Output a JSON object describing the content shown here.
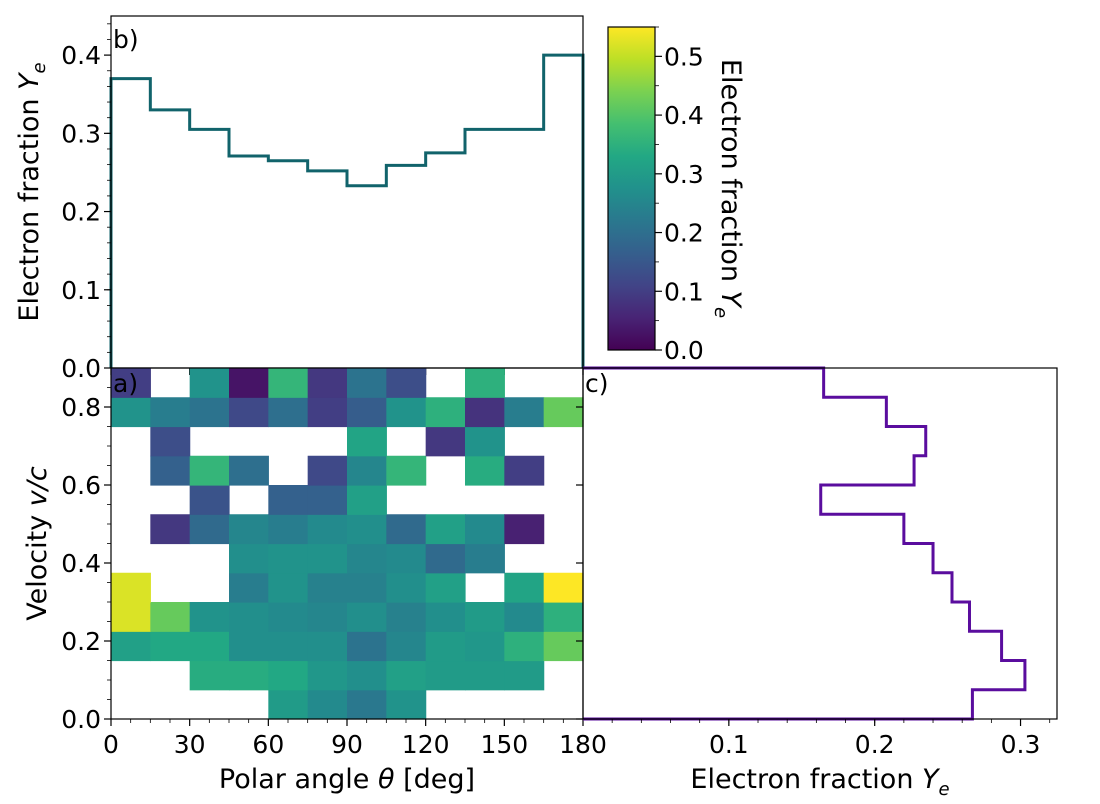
{
  "chart_data": [
    {
      "id": "b",
      "panel_label": "b)",
      "type": "line",
      "step": true,
      "title": "",
      "xlabel": "",
      "ylabel": "Electron fraction $Y_e$",
      "ylabel_text": "Electron fraction ",
      "ylabel_var": "Y",
      "ylabel_sub": "e",
      "xlim": [
        0,
        180
      ],
      "ylim": [
        0,
        0.45
      ],
      "yticks": [
        0.0,
        0.1,
        0.2,
        0.3,
        0.4
      ],
      "ytick_labels": [
        "0.0",
        "0.1",
        "0.2",
        "0.3",
        "0.4"
      ],
      "color": "#11636b",
      "bin_edges": [
        0,
        15,
        30,
        45,
        60,
        75,
        90,
        105,
        120,
        135,
        150,
        165,
        180
      ],
      "values": [
        0.37,
        0.33,
        0.305,
        0.271,
        0.265,
        0.252,
        0.233,
        0.259,
        0.275,
        0.305,
        0.305,
        0.4
      ]
    },
    {
      "id": "a",
      "panel_label": "a)",
      "type": "heatmap",
      "title": "",
      "xlabel": "Polar angle θ [deg]",
      "xlabel_text": "Polar angle ",
      "xlabel_var": "θ",
      "xlabel_unit": " [deg]",
      "ylabel": "Velocity v/c",
      "ylabel_text": "Velocity ",
      "ylabel_var": "v/c",
      "xlim": [
        0,
        180
      ],
      "ylim": [
        0,
        0.9
      ],
      "xticks": [
        0,
        30,
        60,
        90,
        120,
        150,
        180
      ],
      "xtick_labels": [
        "0",
        "30",
        "60",
        "90",
        "120",
        "150",
        "180"
      ],
      "yticks": [
        0.0,
        0.2,
        0.4,
        0.6,
        0.8
      ],
      "ytick_labels": [
        "0.0",
        "0.2",
        "0.4",
        "0.6",
        "0.8"
      ],
      "colormap": "viridis",
      "vmin": 0.0,
      "vmax": 0.55,
      "x_edges": [
        0,
        15,
        30,
        45,
        60,
        75,
        90,
        105,
        120,
        135,
        150,
        165,
        180
      ],
      "y_edges": [
        0,
        0.075,
        0.15,
        0.225,
        0.3,
        0.375,
        0.45,
        0.525,
        0.6,
        0.675,
        0.75,
        0.825,
        0.9
      ],
      "cells_row_order": "rows listed from bottom (v=0) to top (v=0.9); null = no data",
      "cells": [
        [
          null,
          null,
          null,
          null,
          0.3,
          0.26,
          0.22,
          0.28,
          null,
          null,
          null,
          null
        ],
        [
          null,
          null,
          0.34,
          0.34,
          0.33,
          0.29,
          0.27,
          0.31,
          0.3,
          0.3,
          0.3,
          null
        ],
        [
          0.31,
          0.33,
          0.33,
          0.27,
          0.27,
          0.27,
          0.21,
          0.25,
          0.3,
          0.29,
          0.35,
          0.42
        ],
        [
          0.52,
          0.42,
          0.28,
          0.27,
          0.26,
          0.25,
          0.27,
          0.24,
          0.27,
          0.3,
          0.26,
          0.35
        ],
        [
          0.52,
          null,
          null,
          0.23,
          0.28,
          0.24,
          0.24,
          0.27,
          0.31,
          null,
          0.32,
          0.55
        ],
        [
          null,
          null,
          null,
          0.27,
          0.28,
          0.28,
          0.25,
          0.26,
          0.19,
          0.23,
          null,
          null
        ],
        [
          null,
          0.09,
          0.19,
          0.25,
          0.23,
          0.26,
          0.27,
          0.19,
          0.31,
          0.26,
          0.05,
          null
        ],
        [
          null,
          null,
          0.14,
          null,
          0.17,
          0.17,
          0.31,
          null,
          null,
          null,
          null,
          null
        ],
        [
          null,
          0.17,
          0.36,
          0.2,
          null,
          0.12,
          0.25,
          0.36,
          null,
          0.34,
          0.1,
          null
        ],
        [
          null,
          0.13,
          null,
          null,
          null,
          null,
          0.32,
          null,
          0.09,
          0.28,
          null,
          null
        ],
        [
          0.28,
          0.23,
          0.21,
          0.12,
          0.2,
          0.1,
          0.16,
          0.28,
          0.35,
          0.08,
          0.23,
          0.42
        ],
        [
          0.1,
          null,
          0.28,
          0.03,
          0.36,
          0.09,
          0.21,
          0.13,
          null,
          0.35,
          null,
          null
        ]
      ]
    },
    {
      "id": "c",
      "panel_label": "c)",
      "type": "line",
      "step": true,
      "orientation": "horizontal",
      "title": "",
      "xlabel": "Electron fraction $Y_e$",
      "xlabel_text": "Electron fraction ",
      "xlabel_var": "Y",
      "xlabel_sub": "e",
      "ylabel": "",
      "xlim": [
        0,
        0.325
      ],
      "ylim": [
        0,
        0.9
      ],
      "xticks": [
        0.1,
        0.2,
        0.3
      ],
      "xtick_labels": [
        "0.1",
        "0.2",
        "0.3"
      ],
      "color": "#5a0d9e",
      "bin_edges": [
        0,
        0.075,
        0.15,
        0.225,
        0.3,
        0.375,
        0.45,
        0.525,
        0.6,
        0.675,
        0.75,
        0.825,
        0.9
      ],
      "values": [
        0.267,
        0.303,
        0.287,
        0.265,
        0.253,
        0.24,
        0.22,
        0.163,
        0.227,
        0.235,
        0.208,
        0.165
      ]
    },
    {
      "id": "colorbar",
      "type": "heatmap",
      "role": "colorbar",
      "colormap": "viridis",
      "label": "Electron fraction $Y_e$",
      "label_text": "Electron fraction ",
      "label_var": "Y",
      "label_sub": "e",
      "vmin": 0.0,
      "vmax": 0.55,
      "ticks": [
        0.0,
        0.1,
        0.2,
        0.3,
        0.4,
        0.5
      ],
      "tick_labels": [
        "0.0",
        "0.1",
        "0.2",
        "0.3",
        "0.4",
        "0.5"
      ]
    }
  ]
}
